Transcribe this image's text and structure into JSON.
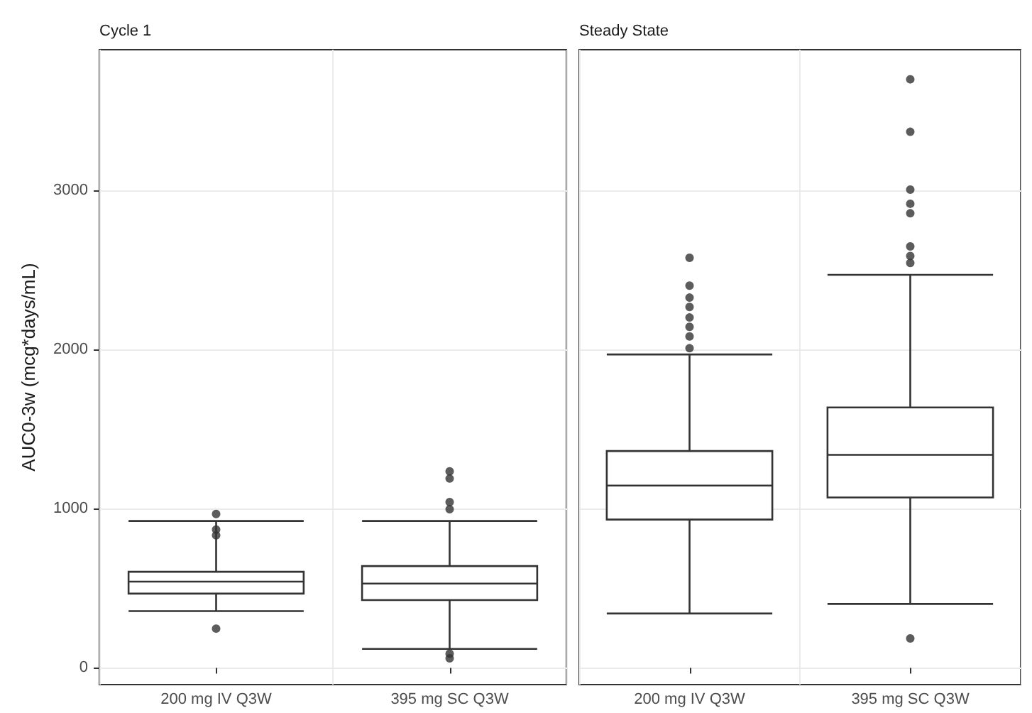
{
  "chart_data": [
    {
      "type": "box",
      "title": "Cycle 1",
      "ylabel": "AUC0-3w (mcg*days/mL)",
      "categories": [
        "200 mg IV Q3W",
        "395 mg SC Q3W"
      ],
      "color": "#333333",
      "ylim": [
        -105,
        3885
      ],
      "yticks": [
        0,
        1000,
        2000,
        3000
      ],
      "grid": true,
      "marker": "circle",
      "boxes": [
        {
          "low": 357,
          "q1": 467,
          "median": 542,
          "q3": 604,
          "high": 923,
          "outliers": [
            247,
            833,
            869,
            967
          ]
        },
        {
          "low": 119,
          "q1": 426,
          "median": 530,
          "q3": 640,
          "high": 923,
          "outliers": [
            60,
            89,
            997,
            1042,
            1190,
            1235
          ]
        }
      ]
    },
    {
      "type": "box",
      "title": "Steady State",
      "categories": [
        "200 mg IV Q3W",
        "395 mg SC Q3W"
      ],
      "color": "#333333",
      "ylim": [
        -105,
        3885
      ],
      "yticks": [
        0,
        1000,
        2000,
        3000
      ],
      "grid": true,
      "marker": "circle",
      "tick_labels": "x",
      "boxes": [
        {
          "low": 342,
          "q1": 932,
          "median": 1146,
          "q3": 1363,
          "high": 1970,
          "outliers": [
            2009,
            2083,
            2143,
            2202,
            2268,
            2327,
            2402,
            2577
          ]
        },
        {
          "low": 402,
          "q1": 1071,
          "median": 1339,
          "q3": 1637,
          "high": 2470,
          "outliers": [
            185,
            2545,
            2589,
            2649,
            2857,
            2917,
            3006,
            3369,
            3699
          ]
        }
      ]
    }
  ]
}
